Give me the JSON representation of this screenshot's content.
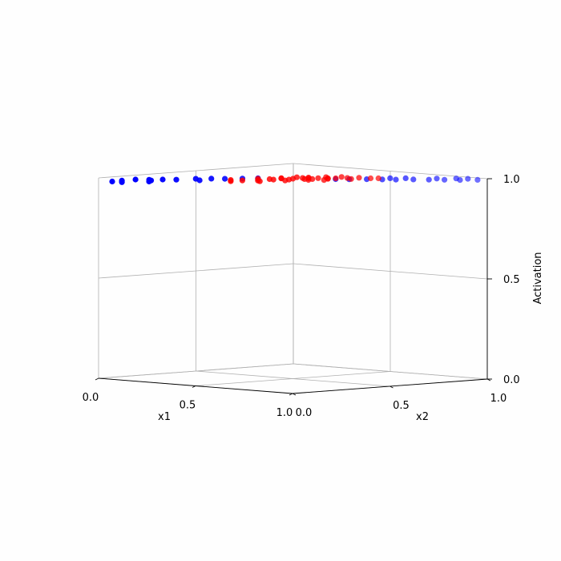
{
  "chart_data": {
    "type": "scatter",
    "projection": "3d",
    "xlabel": "x1",
    "ylabel": "x2",
    "zlabel": "Activation",
    "xlim": [
      0,
      1
    ],
    "ylim": [
      0,
      1
    ],
    "zlim": [
      0,
      1
    ],
    "x_ticks": [
      "0.0",
      "0.5",
      "1.0"
    ],
    "y_ticks": [
      "0.0",
      "0.5",
      "1.0"
    ],
    "z_ticks": [
      "0.0",
      "0.5",
      "1.0"
    ],
    "grid": true,
    "colors": {
      "class_a": "#0000ff",
      "class_b": "#ff0000",
      "grid": "#b0b0b0"
    },
    "series": [
      {
        "color": "#0000ff",
        "points": [
          [
            0.02,
            0.05,
            0.98
          ],
          [
            0.05,
            0.07,
            0.985
          ],
          [
            0.08,
            0.11,
            0.99
          ],
          [
            0.12,
            0.14,
            0.99
          ],
          [
            0.15,
            0.12,
            0.99
          ],
          [
            0.16,
            0.17,
            0.992
          ],
          [
            0.22,
            0.18,
            0.995
          ],
          [
            0.24,
            0.26,
            0.995
          ],
          [
            0.28,
            0.3,
            0.996
          ],
          [
            0.32,
            0.33,
            0.996
          ],
          [
            0.36,
            0.38,
            0.997
          ],
          [
            0.4,
            0.42,
            0.998
          ],
          [
            0.18,
            0.08,
            0.99
          ],
          [
            0.1,
            0.02,
            0.985
          ],
          [
            0.3,
            0.22,
            0.995
          ],
          [
            0.62,
            0.6,
            0.998
          ],
          [
            0.66,
            0.63,
            0.998
          ],
          [
            0.7,
            0.68,
            0.998
          ],
          [
            0.74,
            0.72,
            0.997
          ],
          [
            0.78,
            0.75,
            0.997
          ],
          [
            0.82,
            0.8,
            0.997
          ],
          [
            0.86,
            0.84,
            0.996
          ],
          [
            0.9,
            0.88,
            0.996
          ],
          [
            0.94,
            0.92,
            0.995
          ],
          [
            0.98,
            0.97,
            0.995
          ],
          [
            0.92,
            0.98,
            0.995
          ],
          [
            0.88,
            0.96,
            0.995
          ],
          [
            0.84,
            0.9,
            0.996
          ],
          [
            0.76,
            0.82,
            0.997
          ],
          [
            0.72,
            0.78,
            0.997
          ]
        ]
      },
      {
        "color": "#ff0000",
        "points": [
          [
            0.36,
            0.46,
            0.99
          ],
          [
            0.4,
            0.48,
            0.99
          ],
          [
            0.44,
            0.5,
            0.995
          ],
          [
            0.48,
            0.52,
            0.995
          ],
          [
            0.5,
            0.55,
            0.998
          ],
          [
            0.52,
            0.56,
            0.998
          ],
          [
            0.55,
            0.58,
            0.999
          ],
          [
            0.58,
            0.6,
            0.999
          ],
          [
            0.6,
            0.62,
            0.999
          ],
          [
            0.62,
            0.66,
            0.999
          ],
          [
            0.64,
            0.7,
            0.999
          ],
          [
            0.68,
            0.72,
            0.998
          ],
          [
            0.7,
            0.74,
            0.998
          ],
          [
            0.42,
            0.4,
            0.99
          ],
          [
            0.46,
            0.44,
            0.995
          ],
          [
            0.5,
            0.48,
            0.995
          ],
          [
            0.54,
            0.52,
            0.998
          ],
          [
            0.56,
            0.54,
            0.998
          ],
          [
            0.6,
            0.58,
            0.999
          ],
          [
            0.66,
            0.64,
            0.999
          ],
          [
            0.3,
            0.38,
            0.985
          ],
          [
            0.34,
            0.34,
            0.985
          ],
          [
            0.38,
            0.36,
            0.99
          ],
          [
            0.45,
            0.38,
            0.99
          ],
          [
            0.52,
            0.44,
            0.995
          ],
          [
            0.58,
            0.5,
            0.998
          ],
          [
            0.62,
            0.54,
            0.998
          ],
          [
            0.48,
            0.6,
            0.995
          ],
          [
            0.44,
            0.58,
            0.995
          ],
          [
            0.4,
            0.54,
            0.99
          ],
          [
            0.53,
            0.64,
            0.998
          ],
          [
            0.57,
            0.68,
            0.999
          ]
        ]
      }
    ]
  }
}
